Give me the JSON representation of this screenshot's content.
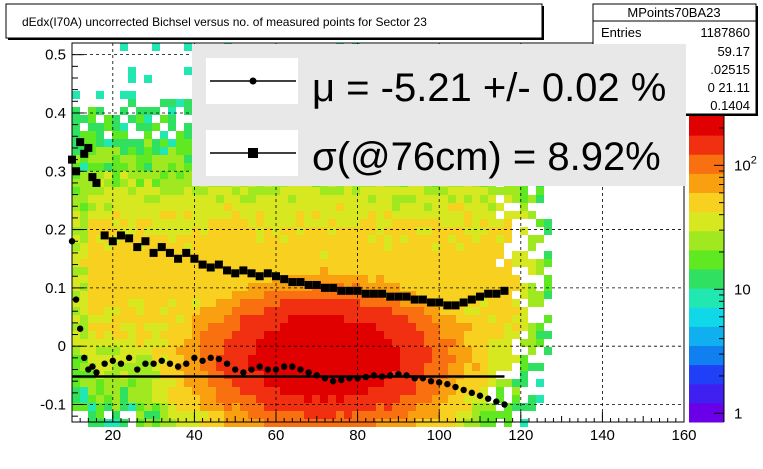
{
  "title": "dEdx(I70A) uncorrected Bichsel versus no. of measured points for Sector 23",
  "stats_box": {
    "name": "MPoints70BA23",
    "rows": [
      {
        "label": "Entries",
        "value": "1187860"
      },
      {
        "label": "",
        "value": "59.17"
      },
      {
        "label": "",
        "value": ".02515"
      },
      {
        "label": "",
        "value": "0  21.11"
      },
      {
        "label": "",
        "value": "0.1404"
      }
    ]
  },
  "legend": {
    "entries": [
      {
        "marker": "circle",
        "text": "μ  = -5.21 +/-  0.02 %"
      },
      {
        "marker": "square",
        "text": "σ(@76cm) =  8.92%"
      }
    ]
  },
  "colors": {
    "palette": [
      "#6a00e8",
      "#4020f0",
      "#2040f8",
      "#1080f0",
      "#10b0f0",
      "#10d8e8",
      "#20e8b0",
      "#30e060",
      "#60e820",
      "#a0e820",
      "#d8e820",
      "#f8d020",
      "#f8a010",
      "#f87010",
      "#f03010",
      "#e00000"
    ],
    "mean_line": "#000000",
    "markers": "#000000"
  },
  "chart_data": {
    "type": "heatmap",
    "title": "dEdx(I70A) uncorrected Bichsel versus no. of measured points for Sector 23",
    "xlabel": "",
    "ylabel": "",
    "xlim": [
      10,
      160
    ],
    "ylim": [
      -0.13,
      0.52
    ],
    "x_ticks": [
      20,
      40,
      60,
      80,
      100,
      120,
      140,
      160
    ],
    "y_ticks": [
      -0.1,
      0,
      0.1,
      0.2,
      0.3,
      0.4,
      0.5
    ],
    "y_tick_labels": [
      "-0.1",
      "0",
      "0.1",
      "0.2",
      "0.3",
      "0.4",
      "0.5"
    ],
    "grid": true,
    "z_scale": "log",
    "z_ticks": [
      1,
      10,
      100
    ],
    "z_tick_labels": [
      "1",
      "10",
      "10^2"
    ],
    "horizontal_line": {
      "y": -0.052,
      "x_range": [
        10,
        116
      ]
    },
    "series": [
      {
        "marker": "circle",
        "x": [
          10,
          11,
          12,
          13,
          14,
          15,
          16,
          18,
          20,
          22,
          24,
          26,
          28,
          30,
          32,
          34,
          36,
          38,
          40,
          42,
          44,
          46,
          48,
          50,
          52,
          54,
          56,
          58,
          60,
          62,
          64,
          66,
          68,
          70,
          72,
          74,
          76,
          78,
          80,
          82,
          84,
          86,
          88,
          90,
          92,
          94,
          96,
          98,
          100,
          102,
          104,
          106,
          108,
          110,
          112,
          114,
          116
        ],
        "values": [
          0.18,
          0.08,
          0.03,
          -0.02,
          -0.04,
          -0.035,
          -0.045,
          -0.03,
          -0.025,
          -0.03,
          -0.02,
          -0.04,
          -0.03,
          -0.03,
          -0.025,
          -0.03,
          -0.035,
          -0.03,
          -0.02,
          -0.025,
          -0.02,
          -0.022,
          -0.03,
          -0.04,
          -0.045,
          -0.04,
          -0.035,
          -0.04,
          -0.04,
          -0.035,
          -0.035,
          -0.04,
          -0.045,
          -0.05,
          -0.055,
          -0.06,
          -0.058,
          -0.055,
          -0.055,
          -0.053,
          -0.05,
          -0.052,
          -0.05,
          -0.048,
          -0.05,
          -0.055,
          -0.055,
          -0.06,
          -0.062,
          -0.065,
          -0.07,
          -0.075,
          -0.08,
          -0.085,
          -0.09,
          -0.095,
          -0.1
        ]
      },
      {
        "marker": "square",
        "x": [
          10,
          11,
          12,
          13,
          14,
          15,
          16,
          18,
          20,
          22,
          24,
          26,
          28,
          30,
          32,
          34,
          36,
          38,
          40,
          42,
          44,
          46,
          48,
          50,
          52,
          54,
          56,
          58,
          60,
          62,
          64,
          66,
          68,
          70,
          72,
          74,
          76,
          78,
          80,
          82,
          84,
          86,
          88,
          90,
          92,
          94,
          96,
          98,
          100,
          102,
          104,
          106,
          108,
          110,
          112,
          114,
          116
        ],
        "values": [
          0.32,
          0.3,
          0.35,
          0.33,
          0.34,
          0.29,
          0.28,
          0.19,
          0.18,
          0.19,
          0.185,
          0.17,
          0.18,
          0.16,
          0.17,
          0.16,
          0.15,
          0.16,
          0.15,
          0.14,
          0.135,
          0.14,
          0.13,
          0.125,
          0.13,
          0.125,
          0.12,
          0.125,
          0.12,
          0.115,
          0.11,
          0.11,
          0.105,
          0.105,
          0.1,
          0.1,
          0.095,
          0.095,
          0.095,
          0.09,
          0.09,
          0.09,
          0.085,
          0.085,
          0.085,
          0.08,
          0.08,
          0.075,
          0.075,
          0.07,
          0.07,
          0.075,
          0.08,
          0.085,
          0.09,
          0.09,
          0.095
        ]
      }
    ]
  }
}
